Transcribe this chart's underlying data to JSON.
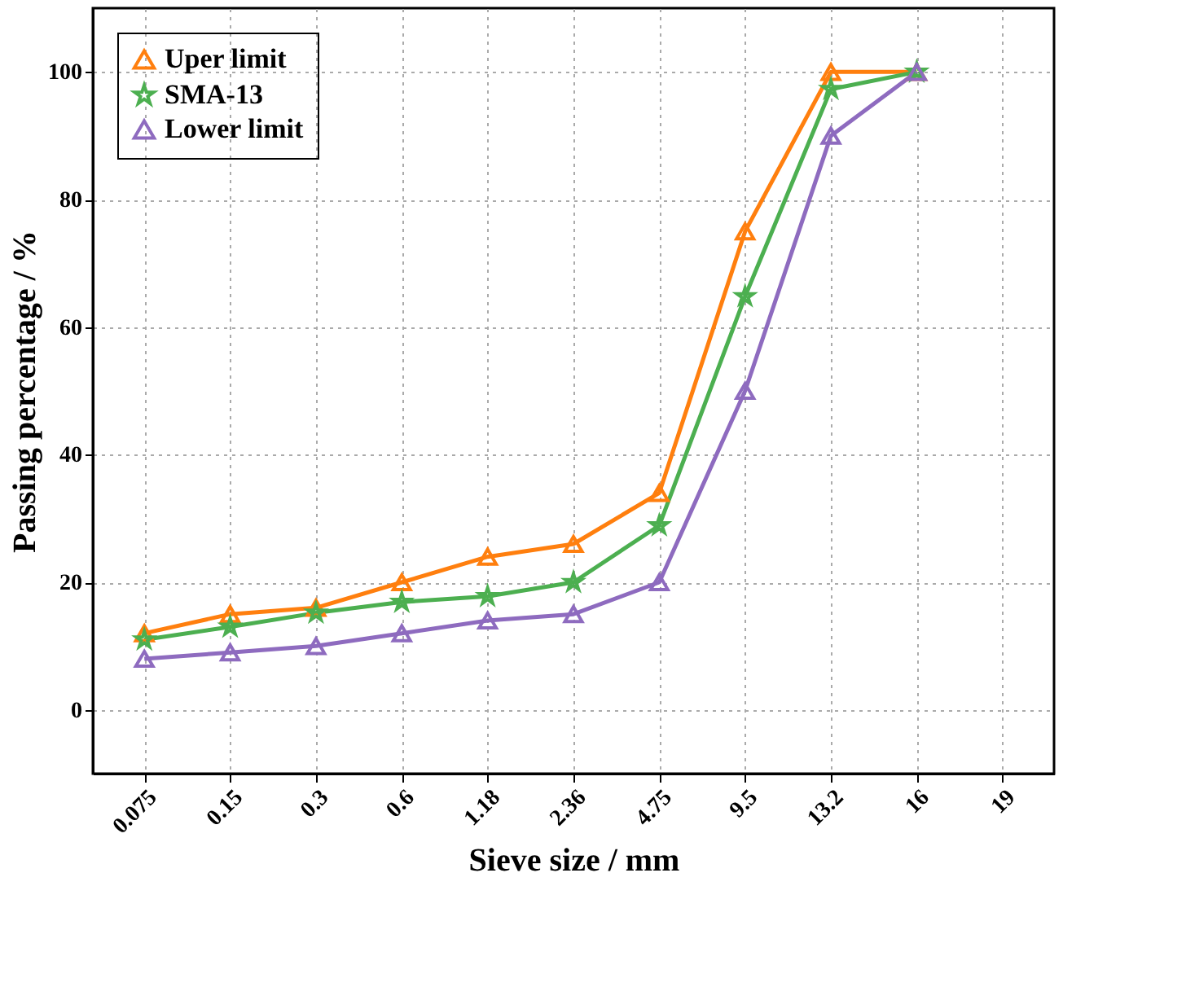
{
  "chart_data": {
    "type": "line",
    "xlabel": "Sieve size / mm",
    "ylabel": "Passing percentage / %",
    "categories": [
      "0.075",
      "0.15",
      "0.3",
      "0.6",
      "1.18",
      "2.36",
      "4.75",
      "9.5",
      "13.2",
      "16",
      "19"
    ],
    "series": [
      {
        "name": "Uper limit",
        "color": "#ff7f0e",
        "marker": "triangle",
        "values": [
          12,
          15,
          16,
          20,
          24,
          26,
          34,
          75,
          100,
          100,
          null
        ]
      },
      {
        "name": "SMA-13",
        "color": "#4caf50",
        "marker": "star",
        "values": [
          11,
          13,
          15.2,
          16.9,
          17.8,
          20,
          28.9,
          64.8,
          97.3,
          100,
          null
        ]
      },
      {
        "name": "Lower limit",
        "color": "#8e6bbf",
        "marker": "triangle",
        "values": [
          8,
          9,
          10,
          12,
          14,
          15,
          20,
          50,
          90,
          100,
          null
        ]
      }
    ],
    "ylim": [
      -10,
      110
    ],
    "yticks": [
      0,
      20,
      40,
      60,
      80,
      100
    ],
    "grid": true,
    "legend": "top left",
    "line_style": "solid"
  }
}
